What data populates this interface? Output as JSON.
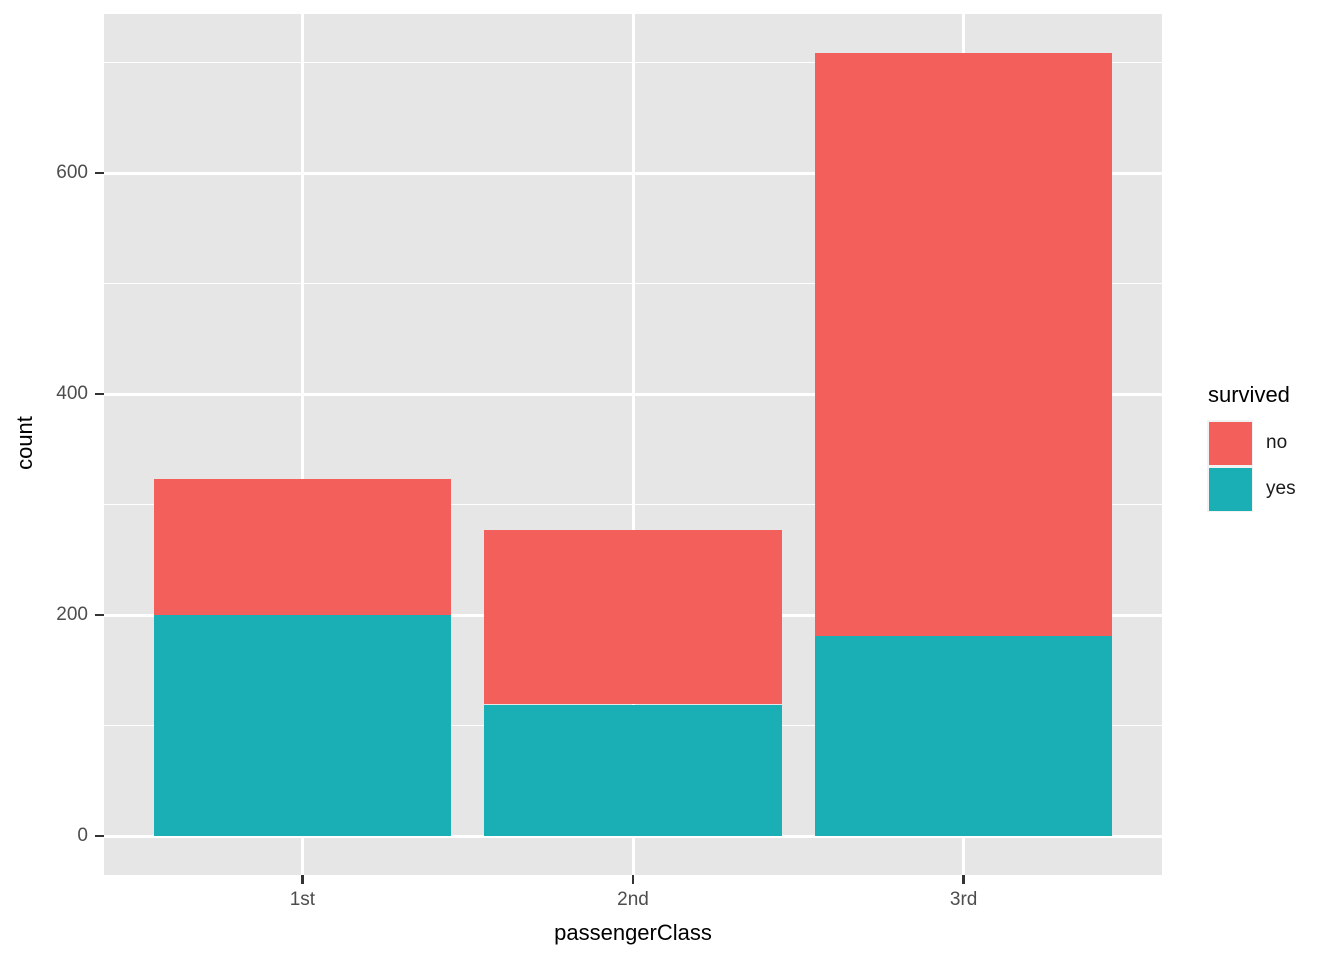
{
  "chart_data": {
    "type": "bar",
    "stacked": true,
    "title": "",
    "xlabel": "passengerClass",
    "ylabel": "count",
    "categories": [
      "1st",
      "2nd",
      "3rd"
    ],
    "series": [
      {
        "name": "no",
        "color": "#F3605B",
        "values": [
          123,
          158,
          528
        ]
      },
      {
        "name": "yes",
        "color": "#19AFB5",
        "values": [
          200,
          119,
          181
        ]
      }
    ],
    "stack_order_bottom_to_top": [
      "yes",
      "no"
    ],
    "totals": [
      323,
      277,
      709
    ],
    "yticks": [
      0,
      200,
      400,
      600
    ],
    "y_minor_ticks": [
      100,
      300,
      500,
      700
    ],
    "ylim": [
      0,
      709
    ],
    "grid": true,
    "legend": {
      "title": "survived",
      "position": "right",
      "entries": [
        {
          "label": "no",
          "color": "#F3605B"
        },
        {
          "label": "yes",
          "color": "#19AFB5"
        }
      ]
    },
    "colors": {
      "panel_background": "#E6E6E6",
      "gridline": "#FFFFFF",
      "tick_mark": "#333333",
      "tick_label": "#4D4D4D",
      "axis_title": "#000000",
      "legend_key_background": "#F2F2F2"
    }
  }
}
